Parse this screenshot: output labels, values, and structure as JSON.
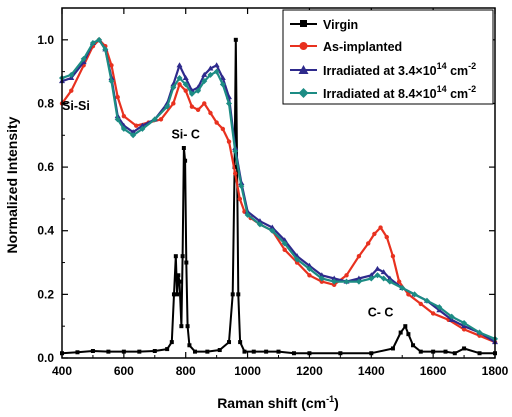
{
  "chart_data": {
    "type": "line",
    "title": "",
    "xlabel": "Raman shift (cm",
    "xlabel_sup": "-1",
    "xlabel_close": ")",
    "ylabel": "Normalized Intensity",
    "xlim": [
      400,
      1800
    ],
    "ylim": [
      0,
      1.1
    ],
    "x_ticks": [
      400,
      600,
      800,
      1000,
      1200,
      1400,
      1600,
      1800
    ],
    "x_tick_labels": [
      "400",
      "600",
      "800",
      "1000",
      "1200",
      "1400",
      "1600",
      "1800"
    ],
    "y_ticks": [
      0.0,
      0.2,
      0.4,
      0.6,
      0.8,
      1.0
    ],
    "y_tick_labels": [
      "0.0",
      "0.2",
      "0.4",
      "0.6",
      "0.8",
      "1.0"
    ],
    "grid": false,
    "legend_position": "top-right",
    "series": [
      {
        "name": "Virgin",
        "color": "#000000",
        "marker": "square",
        "x": [
          400,
          450,
          500,
          550,
          600,
          650,
          700,
          740,
          755,
          762,
          768,
          772,
          776,
          780,
          786,
          790,
          794,
          798,
          802,
          806,
          812,
          830,
          870,
          910,
          940,
          952,
          958,
          962,
          966,
          970,
          976,
          990,
          1020,
          1060,
          1100,
          1150,
          1200,
          1300,
          1400,
          1470,
          1495,
          1510,
          1520,
          1535,
          1560,
          1600,
          1640,
          1670,
          1700,
          1750,
          1800
        ],
        "y": [
          0.015,
          0.018,
          0.022,
          0.02,
          0.02,
          0.02,
          0.022,
          0.028,
          0.05,
          0.2,
          0.32,
          0.2,
          0.26,
          0.24,
          0.1,
          0.32,
          0.66,
          0.62,
          0.3,
          0.1,
          0.04,
          0.02,
          0.02,
          0.025,
          0.05,
          0.2,
          0.6,
          1.0,
          0.6,
          0.2,
          0.05,
          0.02,
          0.02,
          0.02,
          0.02,
          0.015,
          0.015,
          0.015,
          0.015,
          0.03,
          0.08,
          0.1,
          0.075,
          0.04,
          0.02,
          0.02,
          0.02,
          0.015,
          0.03,
          0.015,
          0.015
        ]
      },
      {
        "name": "As-implanted",
        "color": "#e8311f",
        "marker": "circle",
        "x": [
          400,
          430,
          470,
          500,
          520,
          540,
          560,
          580,
          600,
          640,
          680,
          720,
          760,
          780,
          800,
          820,
          840,
          860,
          880,
          900,
          920,
          940,
          960,
          975,
          990,
          1010,
          1040,
          1080,
          1120,
          1160,
          1200,
          1240,
          1280,
          1320,
          1360,
          1390,
          1410,
          1430,
          1450,
          1470,
          1490,
          1520,
          1560,
          1600,
          1650,
          1700,
          1750,
          1800
        ],
        "y": [
          0.8,
          0.84,
          0.92,
          0.98,
          1.0,
          0.98,
          0.92,
          0.82,
          0.76,
          0.73,
          0.74,
          0.75,
          0.8,
          0.86,
          0.84,
          0.79,
          0.78,
          0.8,
          0.77,
          0.74,
          0.72,
          0.68,
          0.58,
          0.5,
          0.46,
          0.44,
          0.42,
          0.4,
          0.34,
          0.3,
          0.26,
          0.24,
          0.23,
          0.26,
          0.32,
          0.36,
          0.39,
          0.41,
          0.38,
          0.32,
          0.24,
          0.2,
          0.17,
          0.14,
          0.12,
          0.09,
          0.07,
          0.05
        ]
      },
      {
        "name": "Irradiated at 3.4×10",
        "name_sup": "14",
        "name_unit": " cm",
        "name_unit_sup": "-2",
        "color": "#2e2a8c",
        "marker": "triangle",
        "x": [
          400,
          430,
          470,
          500,
          520,
          540,
          560,
          580,
          600,
          630,
          660,
          700,
          740,
          760,
          780,
          800,
          820,
          840,
          860,
          880,
          900,
          920,
          940,
          960,
          980,
          1000,
          1040,
          1080,
          1120,
          1160,
          1200,
          1240,
          1280,
          1320,
          1360,
          1400,
          1420,
          1440,
          1460,
          1500,
          1540,
          1580,
          1620,
          1660,
          1700,
          1750,
          1800
        ],
        "y": [
          0.87,
          0.88,
          0.93,
          0.99,
          1.0,
          0.97,
          0.88,
          0.76,
          0.73,
          0.71,
          0.73,
          0.75,
          0.8,
          0.86,
          0.92,
          0.88,
          0.84,
          0.85,
          0.89,
          0.91,
          0.92,
          0.88,
          0.82,
          0.66,
          0.55,
          0.46,
          0.43,
          0.41,
          0.37,
          0.32,
          0.29,
          0.26,
          0.25,
          0.24,
          0.25,
          0.26,
          0.28,
          0.27,
          0.25,
          0.22,
          0.2,
          0.18,
          0.15,
          0.12,
          0.1,
          0.08,
          0.05
        ]
      },
      {
        "name": "Irradiated at 8.4×10",
        "name_sup": "14",
        "name_unit": " cm",
        "name_unit_sup": "-2",
        "color": "#1c8c84",
        "marker": "diamond",
        "x": [
          400,
          430,
          470,
          500,
          520,
          540,
          560,
          580,
          600,
          630,
          660,
          700,
          740,
          760,
          780,
          800,
          820,
          840,
          860,
          880,
          900,
          920,
          940,
          960,
          980,
          1000,
          1040,
          1080,
          1120,
          1160,
          1200,
          1240,
          1280,
          1320,
          1360,
          1400,
          1420,
          1440,
          1460,
          1500,
          1540,
          1580,
          1620,
          1660,
          1700,
          1750,
          1800
        ],
        "y": [
          0.88,
          0.89,
          0.94,
          0.99,
          1.0,
          0.97,
          0.87,
          0.75,
          0.72,
          0.7,
          0.72,
          0.75,
          0.79,
          0.85,
          0.88,
          0.86,
          0.83,
          0.84,
          0.87,
          0.89,
          0.9,
          0.86,
          0.8,
          0.65,
          0.54,
          0.45,
          0.42,
          0.4,
          0.36,
          0.31,
          0.28,
          0.25,
          0.24,
          0.24,
          0.24,
          0.25,
          0.26,
          0.25,
          0.24,
          0.22,
          0.2,
          0.18,
          0.16,
          0.13,
          0.11,
          0.08,
          0.06
        ]
      }
    ],
    "annotations": [
      {
        "text": "Si-Si",
        "x": 445,
        "y": 0.78
      },
      {
        "text": "Si- C",
        "x": 800,
        "y": 0.69
      },
      {
        "text": "C- C",
        "x": 1430,
        "y": 0.13
      }
    ]
  }
}
